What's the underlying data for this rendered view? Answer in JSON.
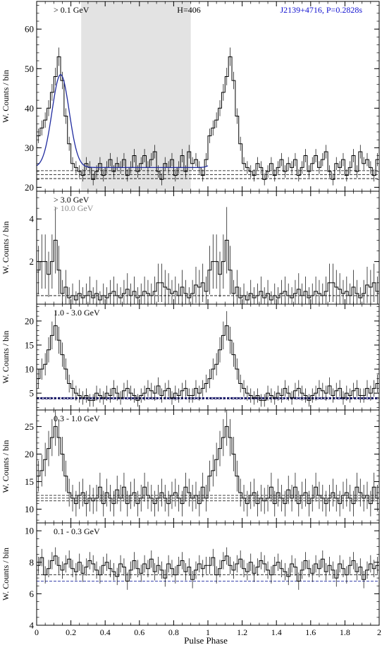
{
  "figure": {
    "xlabel": "Pulse Phase",
    "ylabel": "W. Counts / bin",
    "source_label": "J2139+4716, P=0.2828s",
    "htest_label": "H=406"
  },
  "colors": {
    "histogram": "#000000",
    "fit": "#1f2a9f",
    "shade": "#e3e3e3",
    "background_lines": "#000000",
    "highE_label": "#8a8a8a",
    "title_blue": "#1010d0"
  },
  "chart_data": [
    {
      "type": "line",
      "id": "p1",
      "label": "> 0.1 GeV",
      "ylim": [
        19,
        67
      ],
      "yticks": [
        20,
        30,
        40,
        50,
        60
      ],
      "xlim": [
        0,
        2
      ],
      "xticks": [
        0,
        0.2,
        0.4,
        0.6,
        0.8,
        1,
        1.2,
        1.4,
        1.6,
        1.8,
        2
      ],
      "bins": 50,
      "step": "histogram with 1-sigma error bars, repeated over two rotations",
      "values": [
        33,
        35,
        37,
        40,
        44,
        48,
        53,
        47,
        38,
        31,
        26,
        25,
        24,
        23,
        26,
        25,
        22,
        24,
        26,
        23,
        25,
        27,
        24,
        26,
        25,
        27,
        23,
        25,
        28,
        24,
        26,
        28,
        25,
        27,
        29,
        24,
        22,
        26,
        25,
        27,
        23,
        25,
        28,
        24,
        29,
        26,
        27,
        25,
        23,
        27
      ],
      "background_levels": [
        22.2,
        23.2,
        24.2
      ],
      "offpulse_phase": [
        0.26,
        0.9
      ],
      "fit": {
        "baseline": 25,
        "peak_phase": 0.14,
        "peak_height": 23.5,
        "sigma": 0.05
      }
    },
    {
      "type": "line",
      "id": "p2",
      "label": "> 3.0 GeV",
      "label2": "> 10.0 GeV",
      "ylim": [
        0,
        5.3
      ],
      "yticks": [
        2,
        4
      ],
      "xlim": [
        0,
        2
      ],
      "bins": 50,
      "values": [
        1.6,
        2.0,
        2.0,
        1.4,
        2.0,
        3.0,
        1.6,
        0.5,
        0.8,
        0.3,
        0.4,
        0.2,
        0.5,
        0.3,
        0.4,
        0.6,
        0.3,
        0.5,
        0.2,
        0.4,
        0.3,
        0.5,
        0.6,
        0.4,
        0.3,
        0.5,
        0.7,
        0.4,
        0.6,
        0.3,
        0.4,
        0.6,
        0.5,
        0.4,
        0.6,
        1.0,
        1.0,
        0.8,
        0.7,
        0.5,
        0.6,
        0.4,
        0.8,
        0.5,
        0.3,
        0.5,
        0.9,
        0.8,
        1.0,
        0.6
      ],
      "background_levels": [
        0.4
      ]
    },
    {
      "type": "line",
      "id": "p3",
      "label": "1.0 - 3.0 GeV",
      "ylim": [
        1.5,
        23.5
      ],
      "yticks": [
        5,
        10,
        15,
        20
      ],
      "xlim": [
        0,
        2
      ],
      "bins": 50,
      "values": [
        8,
        10,
        11,
        14,
        17,
        19,
        16,
        13,
        10,
        7,
        6,
        5,
        4.5,
        4,
        4.5,
        3.5,
        3.5,
        5,
        4.5,
        4,
        5,
        4.5,
        6,
        5,
        4,
        5.5,
        6,
        5,
        4.5,
        3.5,
        4.5,
        5,
        6,
        5.5,
        5,
        6.5,
        4.5,
        5.5,
        6,
        4,
        5,
        4.5,
        5.5,
        6,
        4.5,
        4.5,
        6,
        5,
        6,
        7
      ],
      "background_levels": [
        3.8,
        3.95,
        4.1
      ]
    },
    {
      "type": "line",
      "id": "p4",
      "label": "0.3 - 1.0 GeV",
      "ylim": [
        7.5,
        28
      ],
      "yticks": [
        10,
        15,
        20,
        25
      ],
      "xlim": [
        0,
        2
      ],
      "bins": 50,
      "values": [
        16,
        17,
        19,
        21,
        23,
        25,
        23,
        20,
        16,
        13,
        12,
        11,
        12.5,
        13,
        11,
        12,
        11.5,
        12,
        14,
        11,
        13,
        12,
        11,
        13.5,
        12,
        14,
        11,
        12.5,
        13,
        11,
        12,
        14,
        12.5,
        12,
        11,
        12,
        13,
        12,
        11,
        12.5,
        13,
        12,
        11,
        14,
        13,
        12,
        12.5,
        11,
        14,
        12
      ],
      "background_levels": [
        11.5,
        12.0,
        12.5
      ]
    },
    {
      "type": "line",
      "id": "p5",
      "label": "0.1 - 0.3 GeV",
      "ylim": [
        4,
        10.5
      ],
      "yticks": [
        4,
        6,
        8,
        10
      ],
      "xlim": [
        0,
        2
      ],
      "bins": 50,
      "values": [
        7.8,
        8.3,
        7.2,
        7.6,
        8.1,
        8.4,
        7.8,
        7.5,
        7.9,
        8.2,
        7.6,
        7.4,
        8.0,
        7.3,
        7.7,
        8.1,
        7.9,
        7.5,
        7.2,
        7.8,
        8.0,
        7.6,
        7.4,
        7.1,
        7.9,
        7.7,
        6.8,
        7.5,
        8.1,
        7.6,
        7.3,
        7.9,
        7.6,
        8.2,
        7.4,
        7.8,
        7.5,
        7.0,
        7.9,
        7.6,
        7.2,
        7.8,
        8.1,
        7.4,
        7.7,
        6.9,
        7.5,
        7.9,
        7.6,
        7.8
      ],
      "background_levels": [
        6.8,
        7.2
      ]
    }
  ]
}
